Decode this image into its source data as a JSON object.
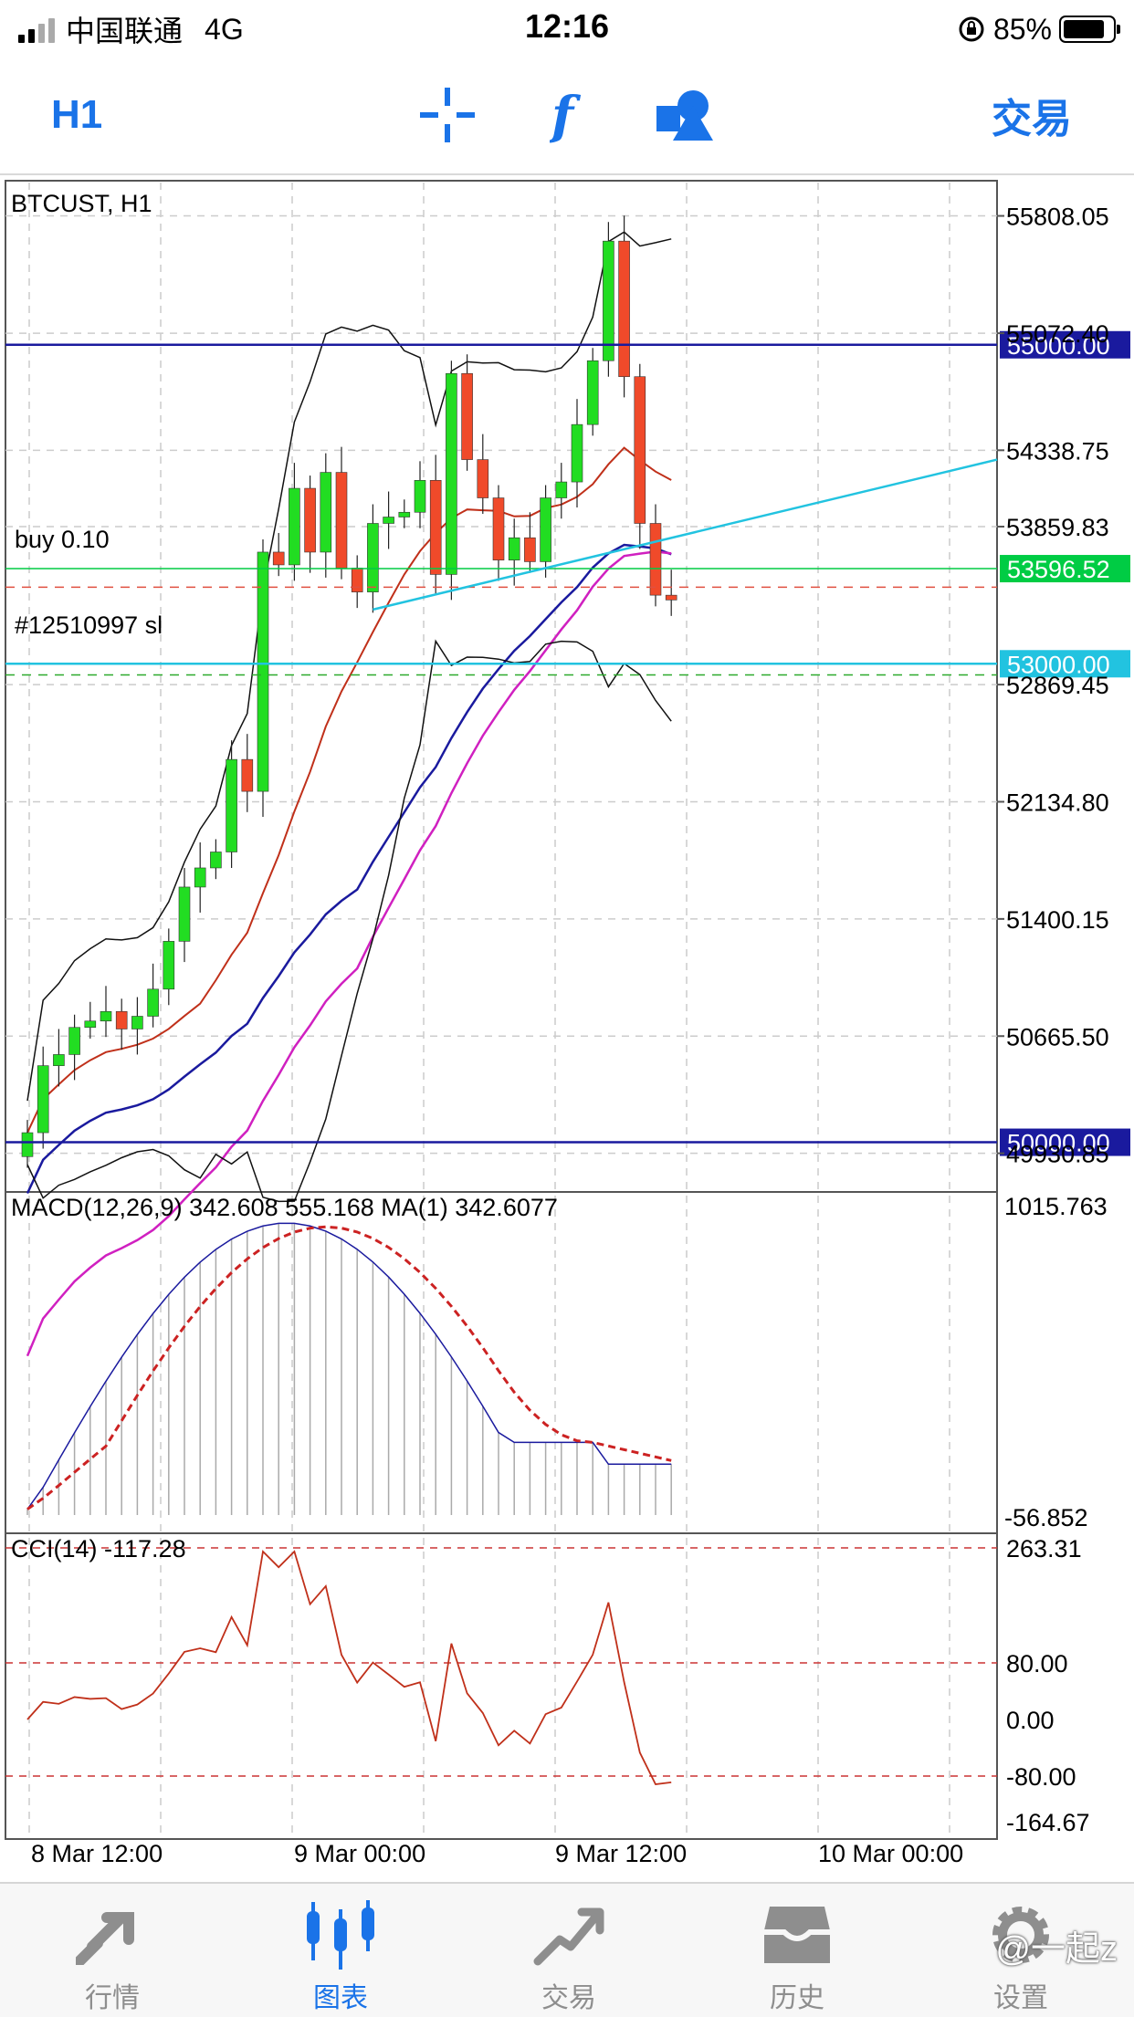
{
  "status_bar": {
    "carrier": "中国联通",
    "network": "4G",
    "time": "12:16",
    "battery": "85%",
    "battery_level": 0.85
  },
  "toolbar": {
    "timeframe": "H1",
    "trade_label": "交易",
    "icons": [
      "crosshair-icon",
      "indicator-f-icon",
      "objects-icon"
    ]
  },
  "chart": {
    "symbol_label": "BTCUST, H1",
    "price_scale": [
      "55808.05",
      "55072.40",
      "54338.75",
      "53859.83",
      "52869.45",
      "52134.80",
      "51400.15",
      "50665.50",
      "49930.85"
    ],
    "level_tags": [
      {
        "text": "55000.00",
        "color": "#1a1a9e"
      },
      {
        "text": "53596.52",
        "color": "#00cc44"
      },
      {
        "text": "53000.00",
        "color": "#22c3e0"
      },
      {
        "text": "50000.00",
        "color": "#1a1a9e"
      }
    ],
    "order_labels": {
      "buy": "buy 0.10",
      "sl": "#12510997 sl"
    },
    "macd": {
      "label": "MACD(12,26,9) 342.608 555.168 MA(1) 342.6077",
      "max": "1015.763",
      "min": "-56.852"
    },
    "cci": {
      "label": "CCI(14) -117.28",
      "levels": [
        "263.31",
        "80.00",
        "0.00",
        "-80.00",
        "-164.67"
      ]
    },
    "time_labels": [
      "8 Mar 12:00",
      "9 Mar 00:00",
      "9 Mar 12:00",
      "10 Mar 00:00"
    ],
    "colors": {
      "bull": "#22dd22",
      "bear": "#f04a2a",
      "level": "#1a1a9e",
      "trend": "#22c3e0",
      "ma_red": "#c0301a",
      "ma_blue": "#1a1a9e",
      "ma_magenta": "#d020c0"
    }
  },
  "chart_data": {
    "type": "line",
    "series": [
      {
        "name": "BTCUST, H1",
        "values": [
          50060,
          50480,
          50550,
          50720,
          50760,
          50820,
          50710,
          50790,
          50960,
          51260,
          51600,
          51720,
          51820,
          52400,
          52200,
          53700,
          53620,
          54100,
          53700,
          54200,
          53600,
          53450,
          53880,
          53920,
          53950,
          54150,
          53560,
          54820,
          54280,
          54040,
          53650,
          53790,
          53640,
          54040,
          54140,
          54500,
          54900,
          55650,
          54800,
          53880,
          53430,
          53400
        ]
      }
    ],
    "y_range": [
      49780,
      55960
    ]
  },
  "tab_bar": {
    "tabs": [
      {
        "label": "行情",
        "icon": "quotes-icon",
        "active": false
      },
      {
        "label": "图表",
        "icon": "chart-icon",
        "active": true
      },
      {
        "label": "交易",
        "icon": "trade-icon",
        "active": false
      },
      {
        "label": "历史",
        "icon": "history-icon",
        "active": false
      },
      {
        "label": "设置",
        "icon": "settings-icon",
        "active": false
      }
    ],
    "watermark": "@一起z"
  }
}
